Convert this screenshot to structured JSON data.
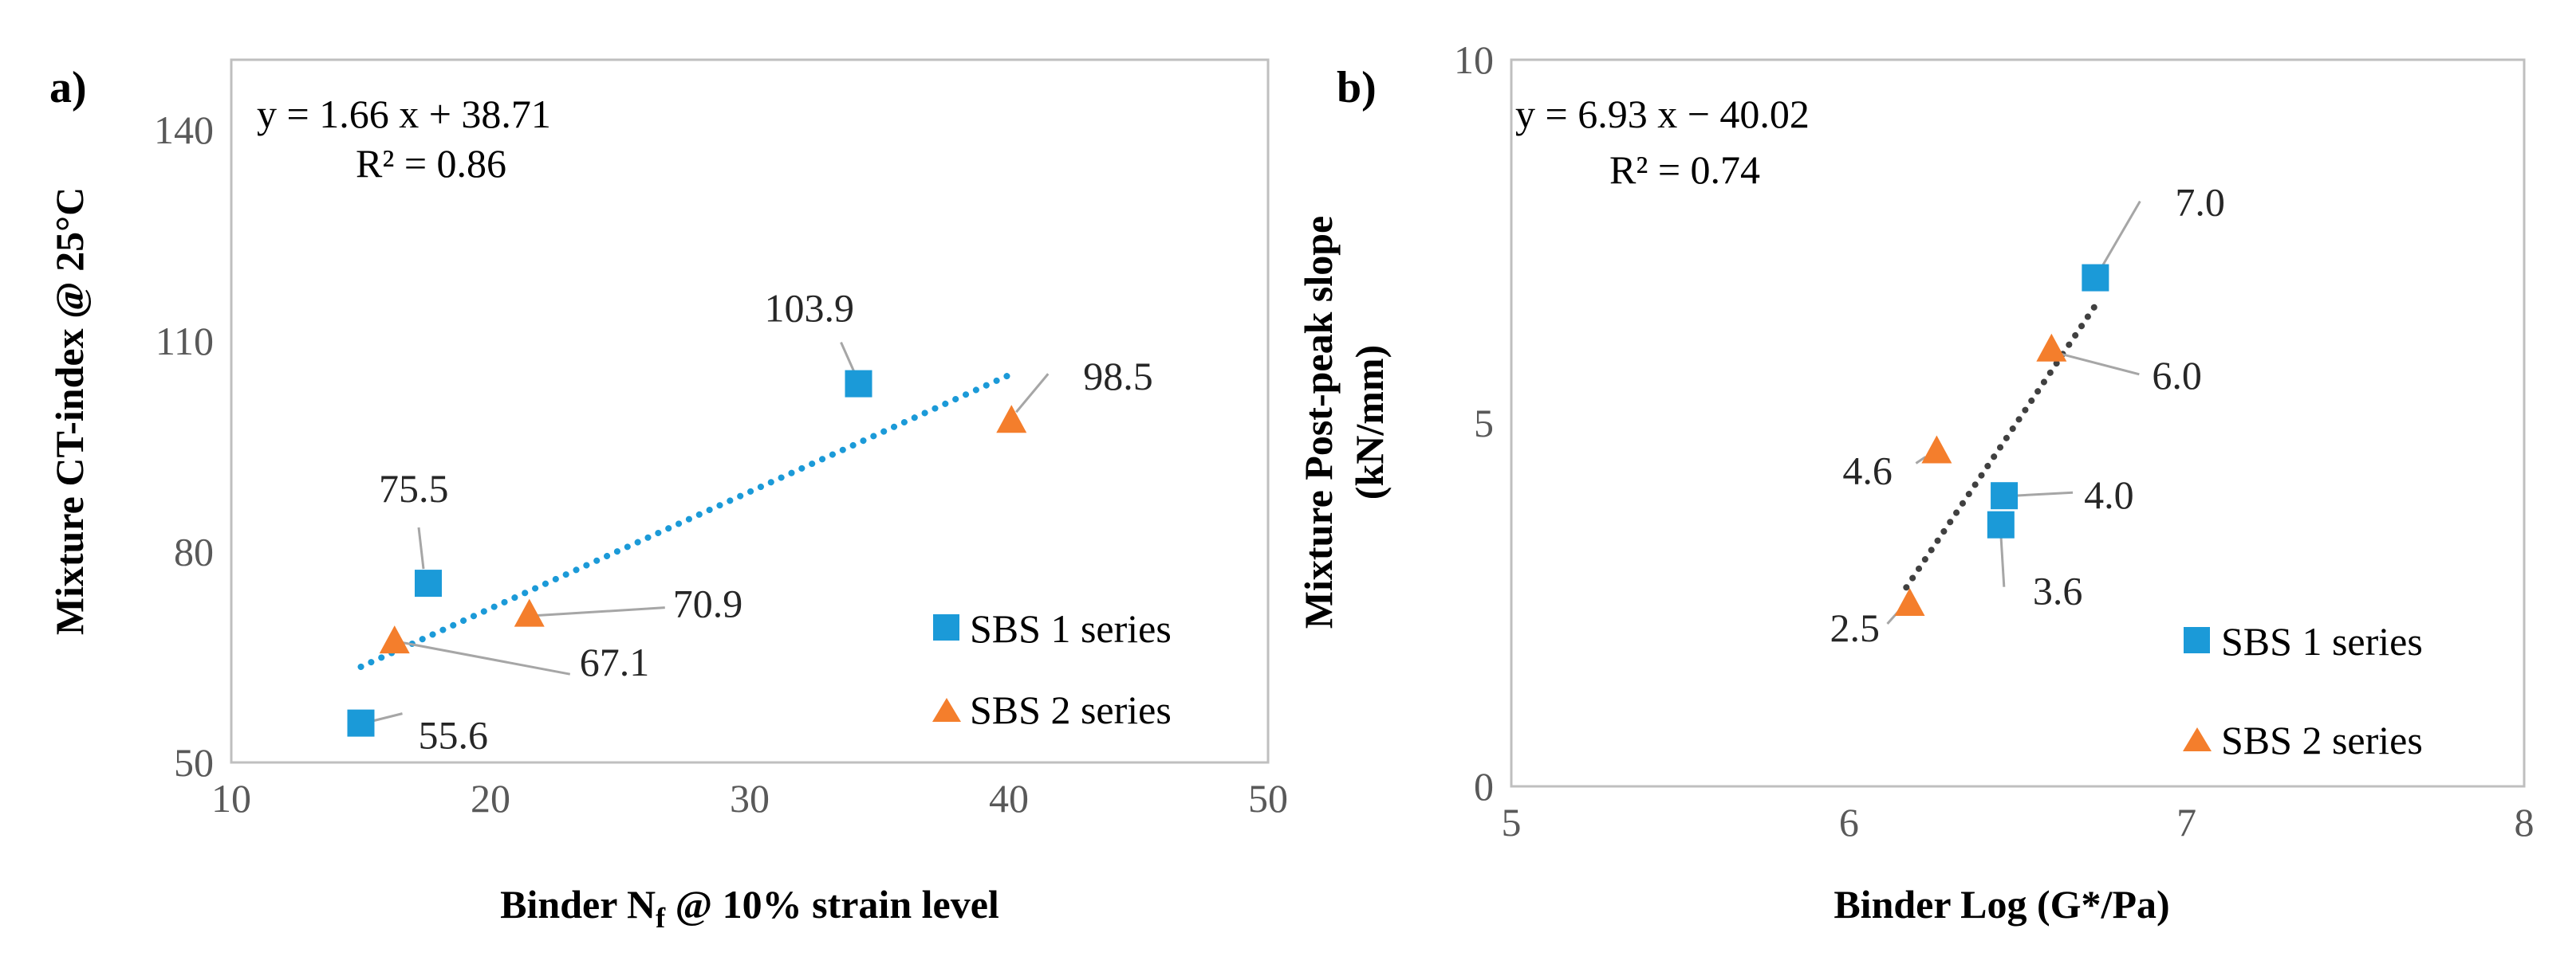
{
  "chart_data": [
    {
      "panel_label": "a)",
      "type": "scatter",
      "xlabel": "Binder N",
      "xlabel_sub": "f",
      "xlabel_rest": " @ 10% strain level",
      "ylabel": "Mixture CT-index @ 25°C",
      "xlim": [
        10,
        50
      ],
      "ylim": [
        50,
        150
      ],
      "xticks": [
        "10",
        "20",
        "30",
        "40",
        "50"
      ],
      "yticks": [
        "50",
        "80",
        "110",
        "140"
      ],
      "series": [
        {
          "name": "SBS 1 series",
          "marker": "square",
          "color": "#1B9AD8",
          "points": [
            {
              "x": 15.0,
              "y": 55.6,
              "label": "55.6"
            },
            {
              "x": 17.6,
              "y": 75.5,
              "label": "75.5"
            },
            {
              "x": 34.2,
              "y": 103.9,
              "label": "103.9"
            }
          ]
        },
        {
          "name": "SBS 2 series",
          "marker": "triangle",
          "color": "#F47E2C",
          "points": [
            {
              "x": 16.3,
              "y": 67.1,
              "label": "67.1"
            },
            {
              "x": 21.5,
              "y": 70.9,
              "label": "70.9"
            },
            {
              "x": 40.1,
              "y": 98.5,
              "label": "98.5"
            }
          ]
        }
      ],
      "trendline": {
        "style": "dotted",
        "color": "#1B9AD8",
        "slope": 1.66,
        "intercept": 38.71,
        "x_range": [
          15.0,
          40.0
        ]
      },
      "equation": "y = 1.66 x + 38.71",
      "r2": "R² = 0.86"
    },
    {
      "panel_label": "b)",
      "type": "scatter",
      "xlabel": "Binder Log (G*/Pa)",
      "ylabel_line1": "Mixture Post-peak slope",
      "ylabel_line2": "(kN/mm)",
      "xlim": [
        5,
        8
      ],
      "ylim": [
        0,
        10
      ],
      "xticks": [
        "5",
        "6",
        "7",
        "8"
      ],
      "yticks": [
        "0",
        "5",
        "10"
      ],
      "series": [
        {
          "name": "SBS 1 series",
          "marker": "square",
          "color": "#1B9AD8",
          "points": [
            {
              "x": 6.45,
              "y": 3.6,
              "label": "3.6"
            },
            {
              "x": 6.46,
              "y": 4.0,
              "label": "4.0"
            },
            {
              "x": 6.73,
              "y": 7.0,
              "label": "7.0"
            }
          ]
        },
        {
          "name": "SBS 2 series",
          "marker": "triangle",
          "color": "#F47E2C",
          "points": [
            {
              "x": 6.18,
              "y": 2.5,
              "label": "2.5"
            },
            {
              "x": 6.26,
              "y": 4.6,
              "label": "4.6"
            },
            {
              "x": 6.6,
              "y": 6.0,
              "label": "6.0"
            }
          ]
        }
      ],
      "trendline": {
        "style": "dotted",
        "color": "#404040",
        "slope": 6.93,
        "intercept": -40.02,
        "x_range": [
          6.17,
          6.73
        ]
      },
      "equation": "y = 6.93 x − 40.02",
      "r2": "R² = 0.74"
    }
  ]
}
